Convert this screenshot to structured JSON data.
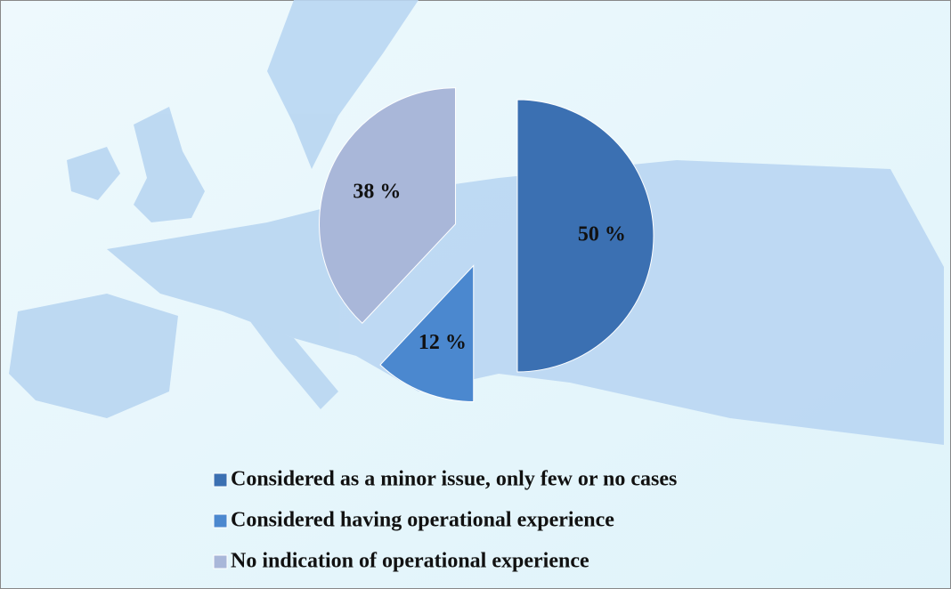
{
  "chart_data": {
    "type": "pie",
    "categories": [
      "Considered as a minor issue, only few or no cases",
      "Considered having operational experience",
      "No indication of operational experience"
    ],
    "values": [
      50,
      12,
      38
    ],
    "value_labels": [
      "50 %",
      "12 %",
      "38 %"
    ],
    "colors": [
      "#3b70b2",
      "#4b88cf",
      "#a9b7d9"
    ],
    "exploded": true,
    "legend": "bottom"
  }
}
